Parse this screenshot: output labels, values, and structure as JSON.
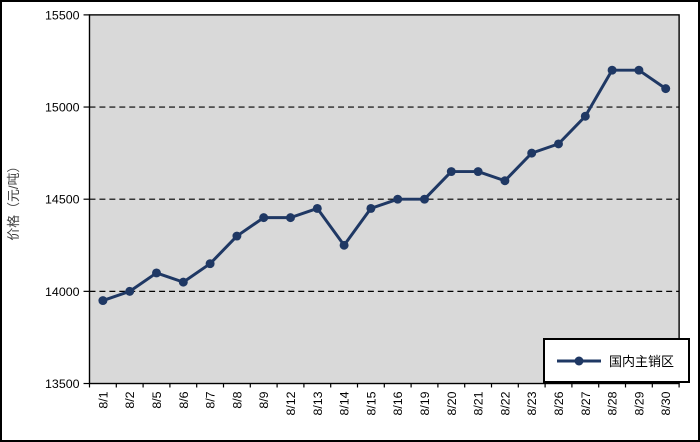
{
  "figure": {
    "background": "#ffffff",
    "border_color": "#000000"
  },
  "chart_data": {
    "type": "line",
    "title": "",
    "xlabel": "",
    "ylabel": "价格（元/吨）",
    "categories": [
      "8/1",
      "8/2",
      "8/5",
      "8/6",
      "8/7",
      "8/8",
      "8/9",
      "8/12",
      "8/13",
      "8/14",
      "8/15",
      "8/16",
      "8/19",
      "8/20",
      "8/21",
      "8/22",
      "8/23",
      "8/26",
      "8/27",
      "8/28",
      "8/29",
      "8/30"
    ],
    "series": [
      {
        "name": "国内主销区",
        "color": "#1F3864",
        "marker": "circle",
        "values": [
          13950,
          14000,
          14100,
          14050,
          14150,
          14300,
          14400,
          14400,
          14450,
          14250,
          14450,
          14500,
          14500,
          14650,
          14650,
          14600,
          14750,
          14800,
          14950,
          15200,
          15200,
          15100
        ]
      }
    ],
    "ylim": [
      13500,
      15500
    ],
    "yticks": [
      13500,
      14000,
      14500,
      15000,
      15500
    ],
    "grid": "horizontal-dashed",
    "plot_background": "#D9D9D9",
    "gridline_color": "#000000",
    "text_color": "#000000",
    "legend_position": "bottom-right"
  }
}
